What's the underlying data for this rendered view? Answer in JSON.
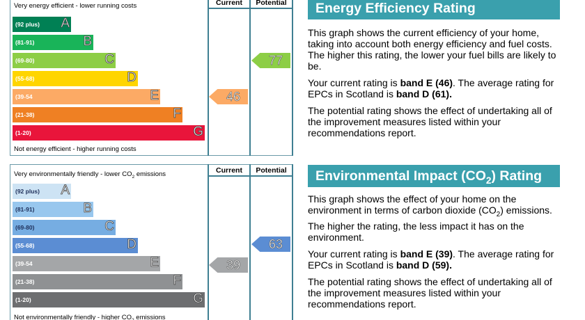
{
  "energy_chart": {
    "col_current": "Current",
    "col_potential": "Potential",
    "top_caption": "Very energy efficient - lower running costs",
    "bottom_caption": "Not energy efficient - higher running costs",
    "bands": [
      {
        "range": "(92 plus)",
        "letter": "A",
        "color": "#008054"
      },
      {
        "range": "(81-91)",
        "letter": "B",
        "color": "#19b459"
      },
      {
        "range": "(69-80)",
        "letter": "C",
        "color": "#8dce46"
      },
      {
        "range": "(55-68)",
        "letter": "D",
        "color": "#ffd500"
      },
      {
        "range": "(39-54",
        "letter": "E",
        "color": "#fcaa65"
      },
      {
        "range": "(21-38)",
        "letter": "F",
        "color": "#ef8023"
      },
      {
        "range": "(1-20)",
        "letter": "G",
        "color": "#e9153b"
      }
    ],
    "current": {
      "value": "46",
      "band": "E",
      "color": "#fcaa65"
    },
    "potential": {
      "value": "77",
      "band": "C",
      "color": "#8dce46"
    }
  },
  "env_chart": {
    "col_current": "Current",
    "col_potential": "Potential",
    "top_caption_pre": "Very environmentally friendly - lower CO",
    "top_caption_sub": "2",
    "top_caption_post": " emissions",
    "bottom_caption_pre": "Not environmentally friendly - higher CO",
    "bottom_caption_sub": "2",
    "bottom_caption_post": " emissions",
    "bands": [
      {
        "range": "(92 plus)",
        "letter": "A",
        "color": "#cde3f4"
      },
      {
        "range": "(81-91)",
        "letter": "B",
        "color": "#98c7ee"
      },
      {
        "range": "(69-80)",
        "letter": "C",
        "color": "#76ade2"
      },
      {
        "range": "(55-68)",
        "letter": "D",
        "color": "#5b8dd3"
      },
      {
        "range": "(39-54",
        "letter": "E",
        "color": "#a4a6a8"
      },
      {
        "range": "(21-38)",
        "letter": "F",
        "color": "#8f9193"
      },
      {
        "range": "(1-20)",
        "letter": "G",
        "color": "#6d6e70"
      }
    ],
    "current": {
      "value": "39",
      "band": "E",
      "color": "#a4a6a8"
    },
    "potential": {
      "value": "63",
      "band": "D",
      "color": "#5b8dd3"
    }
  },
  "energy_panel": {
    "title": "Energy Efficiency Rating",
    "para1": "This graph shows the current efficiency of your home, taking into account both energy efficiency and fuel costs. The higher this rating, the lower your fuel bills are likely to be.",
    "para2_pre": "Your current rating is ",
    "para2_bold1": "band E (46)",
    "para2_mid": ". The average rating for EPCs in Scotland is ",
    "para2_bold2": "band D (61).",
    "para3": "The potential rating shows the effect of undertaking all of the improvement measures listed within your recommendations report."
  },
  "env_panel": {
    "title_pre": "Environmental Impact (CO",
    "title_sub": "2",
    "title_post": ") Rating",
    "para1_pre": "This graph shows the effect of your home on the environment in terms of carbon dioxide (CO",
    "para1_sub": "2",
    "para1_post": ") emissions. The higher the rating, the less impact it has on the environment.",
    "para2_pre": "Your current rating is ",
    "para2_bold1": "band E (39)",
    "para2_mid": ". The average rating for EPCs in Scotland is ",
    "para2_bold2": "band D (59).",
    "para3": "The potential rating shows the effect of undertaking all of the improvement measures listed within your recommendations report."
  }
}
